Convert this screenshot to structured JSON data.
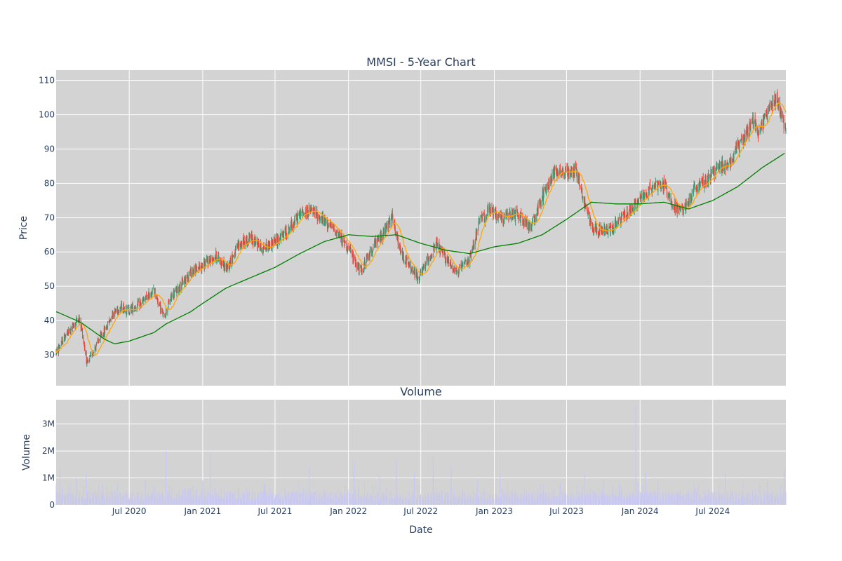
{
  "chart_data": [
    {
      "type": "candlestick",
      "title": "MMSI - 5-Year Chart",
      "ylabel": "Price",
      "ylim": [
        21,
        113
      ],
      "yticks": [
        30,
        40,
        50,
        60,
        70,
        80,
        90,
        100,
        110
      ],
      "x_start": "2019-12-31",
      "x_end": "2024-12-31",
      "grid": true,
      "background": "#d3d3d3",
      "colors": {
        "up": "#3d9970",
        "down": "#ef4136",
        "ma_short": "#ffa500",
        "ma_long": "#008000"
      },
      "price_path": [
        [
          "2020-01-02",
          31
        ],
        [
          "2020-01-20",
          35
        ],
        [
          "2020-02-10",
          38
        ],
        [
          "2020-02-25",
          41
        ],
        [
          "2020-03-05",
          37
        ],
        [
          "2020-03-18",
          27
        ],
        [
          "2020-04-01",
          31
        ],
        [
          "2020-04-20",
          35
        ],
        [
          "2020-05-05",
          38
        ],
        [
          "2020-05-20",
          42
        ],
        [
          "2020-06-10",
          44
        ],
        [
          "2020-07-01",
          43
        ],
        [
          "2020-08-01",
          45
        ],
        [
          "2020-09-01",
          49
        ],
        [
          "2020-09-25",
          41
        ],
        [
          "2020-10-15",
          47
        ],
        [
          "2020-11-05",
          50
        ],
        [
          "2020-12-01",
          54
        ],
        [
          "2021-01-01",
          56
        ],
        [
          "2021-02-05",
          59
        ],
        [
          "2021-03-01",
          55
        ],
        [
          "2021-04-01",
          62
        ],
        [
          "2021-05-01",
          64
        ],
        [
          "2021-06-01",
          61
        ],
        [
          "2021-07-01",
          63
        ],
        [
          "2021-08-01",
          66
        ],
        [
          "2021-09-01",
          71
        ],
        [
          "2021-10-01",
          72
        ],
        [
          "2021-11-01",
          69
        ],
        [
          "2021-12-01",
          66
        ],
        [
          "2022-01-01",
          61
        ],
        [
          "2022-02-01",
          54
        ],
        [
          "2022-03-01",
          61
        ],
        [
          "2022-04-01",
          66
        ],
        [
          "2022-04-20",
          70
        ],
        [
          "2022-05-10",
          60
        ],
        [
          "2022-06-01",
          56
        ],
        [
          "2022-06-25",
          52
        ],
        [
          "2022-07-20",
          58
        ],
        [
          "2022-08-10",
          62
        ],
        [
          "2022-09-01",
          58
        ],
        [
          "2022-10-01",
          54
        ],
        [
          "2022-11-01",
          58
        ],
        [
          "2022-11-25",
          69
        ],
        [
          "2022-12-20",
          72
        ],
        [
          "2023-01-20",
          70
        ],
        [
          "2023-03-01",
          71
        ],
        [
          "2023-04-01",
          67
        ],
        [
          "2023-05-01",
          76
        ],
        [
          "2023-06-01",
          84
        ],
        [
          "2023-07-01",
          83
        ],
        [
          "2023-07-25",
          84
        ],
        [
          "2023-08-15",
          74
        ],
        [
          "2023-09-05",
          67
        ],
        [
          "2023-10-10",
          66
        ],
        [
          "2023-11-01",
          68
        ],
        [
          "2023-12-15",
          73
        ],
        [
          "2024-01-15",
          77
        ],
        [
          "2024-02-10",
          80
        ],
        [
          "2024-03-05",
          79
        ],
        [
          "2024-03-25",
          73
        ],
        [
          "2024-04-20",
          72
        ],
        [
          "2024-05-15",
          78
        ],
        [
          "2024-06-15",
          81
        ],
        [
          "2024-07-10",
          84
        ],
        [
          "2024-08-10",
          86
        ],
        [
          "2024-09-10",
          92
        ],
        [
          "2024-10-10",
          98
        ],
        [
          "2024-10-25",
          95
        ],
        [
          "2024-11-15",
          101
        ],
        [
          "2024-12-05",
          105
        ],
        [
          "2024-12-15",
          103
        ],
        [
          "2024-12-24",
          97
        ],
        [
          "2024-12-31",
          97
        ]
      ],
      "ma_long_path": [
        [
          "2020-01-02",
          42.5
        ],
        [
          "2020-03-01",
          39.5
        ],
        [
          "2020-05-01",
          34.5
        ],
        [
          "2020-05-25",
          33.2
        ],
        [
          "2020-07-01",
          34
        ],
        [
          "2020-09-01",
          36.5
        ],
        [
          "2020-10-01",
          39
        ],
        [
          "2020-12-01",
          42.5
        ],
        [
          "2021-01-01",
          45
        ],
        [
          "2021-03-01",
          49.5
        ],
        [
          "2021-05-01",
          52.5
        ],
        [
          "2021-07-01",
          55.5
        ],
        [
          "2021-09-01",
          59.5
        ],
        [
          "2021-11-01",
          63
        ],
        [
          "2022-01-01",
          65
        ],
        [
          "2022-03-01",
          64.5
        ],
        [
          "2022-05-01",
          65
        ],
        [
          "2022-07-01",
          62.5
        ],
        [
          "2022-09-01",
          60.5
        ],
        [
          "2022-11-01",
          59.5
        ],
        [
          "2023-01-01",
          61.5
        ],
        [
          "2023-03-01",
          62.5
        ],
        [
          "2023-05-01",
          65
        ],
        [
          "2023-07-01",
          69.5
        ],
        [
          "2023-09-01",
          74.5
        ],
        [
          "2023-11-01",
          74
        ],
        [
          "2024-01-01",
          74
        ],
        [
          "2024-03-01",
          74.5
        ],
        [
          "2024-05-01",
          72.5
        ],
        [
          "2024-07-01",
          75
        ],
        [
          "2024-09-01",
          79
        ],
        [
          "2024-11-01",
          84.5
        ],
        [
          "2024-12-31",
          89
        ]
      ]
    },
    {
      "type": "bar",
      "title": "Volume",
      "xlabel": "Date",
      "ylabel": "Volume",
      "ylim": [
        0,
        3.9
      ],
      "yticks": [
        0,
        1,
        2,
        3
      ],
      "ytick_labels": [
        "0",
        "1M",
        "2M",
        "3M"
      ],
      "x_ticks": [
        "2020-07-01",
        "2021-01-01",
        "2021-07-01",
        "2022-01-01",
        "2022-07-01",
        "2023-01-01",
        "2023-07-01",
        "2024-01-01",
        "2024-07-01"
      ],
      "x_tick_labels": [
        "Jul 2020",
        "Jan 2021",
        "Jul 2021",
        "Jan 2022",
        "Jul 2022",
        "Jan 2023",
        "Jul 2023",
        "Jan 2024",
        "Jul 2024"
      ],
      "bar_color": "#c8c8f0",
      "units": "millions",
      "spikes": [
        [
          "2020-01-10",
          1.4
        ],
        [
          "2020-02-20",
          1.0
        ],
        [
          "2020-03-15",
          1.2
        ],
        [
          "2020-04-25",
          0.8
        ],
        [
          "2020-06-01",
          0.8
        ],
        [
          "2020-08-10",
          0.9
        ],
        [
          "2020-10-01",
          2.0
        ],
        [
          "2021-01-01",
          0.9
        ],
        [
          "2021-01-20",
          1.9
        ],
        [
          "2021-06-05",
          0.8
        ],
        [
          "2021-09-25",
          1.4
        ],
        [
          "2022-01-15",
          1.6
        ],
        [
          "2022-03-20",
          1.1
        ],
        [
          "2022-05-01",
          1.7
        ],
        [
          "2022-06-15",
          1.2
        ],
        [
          "2022-08-01",
          1.8
        ],
        [
          "2022-09-15",
          1.4
        ],
        [
          "2022-11-20",
          0.9
        ],
        [
          "2023-01-15",
          1.1
        ],
        [
          "2023-06-15",
          0.8
        ],
        [
          "2023-08-15",
          1.2
        ],
        [
          "2023-10-01",
          0.9
        ],
        [
          "2023-11-10",
          0.8
        ],
        [
          "2023-12-21",
          3.7
        ],
        [
          "2024-01-15",
          1.2
        ],
        [
          "2024-02-15",
          0.9
        ],
        [
          "2024-05-15",
          0.8
        ],
        [
          "2024-08-01",
          1.2
        ],
        [
          "2024-09-15",
          0.9
        ],
        [
          "2024-11-15",
          0.9
        ],
        [
          "2024-12-27",
          1.3
        ]
      ]
    }
  ]
}
